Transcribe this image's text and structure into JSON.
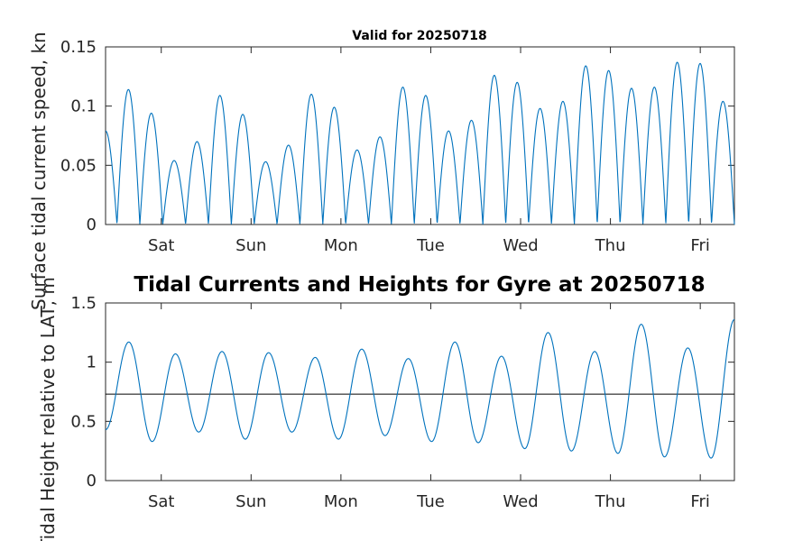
{
  "chart_data": [
    {
      "type": "line",
      "title": "Valid for 20250718",
      "xlabel": "",
      "ylabel": "Surface tidal current speed, kn",
      "x_tick_labels": [
        "Sat",
        "Sun",
        "Mon",
        "Tue",
        "Wed",
        "Thu",
        "Fri"
      ],
      "xlim_days": [
        0,
        7
      ],
      "ylim": [
        0,
        0.15
      ],
      "y_ticks": [
        "0",
        "0.05",
        "0.1",
        "0.15"
      ],
      "y_tick_values": [
        0,
        0.05,
        0.1,
        0.15
      ],
      "grid": false,
      "legend": "none",
      "color": "#0072BD",
      "peaks": [
        0.079,
        0.114,
        0.094,
        0.054,
        0.07,
        0.109,
        0.093,
        0.053,
        0.067,
        0.11,
        0.099,
        0.063,
        0.074,
        0.116,
        0.109,
        0.079,
        0.088,
        0.126,
        0.12,
        0.098,
        0.104,
        0.134,
        0.13,
        0.115,
        0.116,
        0.137,
        0.136,
        0.104
      ]
    },
    {
      "type": "line",
      "title": "Tidal Currents and Heights for Gyre at 20250718",
      "xlabel": "",
      "ylabel": "Tidal Height relative to LAT, m",
      "x_tick_labels": [
        "Sat",
        "Sun",
        "Mon",
        "Tue",
        "Wed",
        "Thu",
        "Fri"
      ],
      "xlim_days": [
        0,
        7
      ],
      "ylim": [
        0,
        1.5
      ],
      "y_ticks": [
        "0",
        "0.5",
        "1",
        "1.5"
      ],
      "y_tick_values": [
        0,
        0.5,
        1,
        1.5
      ],
      "grid": false,
      "legend": "none",
      "color": "#0072BD",
      "reference_level": 0.73,
      "extrema": [
        0.43,
        1.17,
        0.33,
        1.07,
        0.41,
        1.09,
        0.35,
        1.08,
        0.41,
        1.04,
        0.35,
        1.11,
        0.38,
        1.03,
        0.33,
        1.17,
        0.32,
        1.05,
        0.27,
        1.25,
        0.25,
        1.09,
        0.23,
        1.32,
        0.2,
        1.12,
        0.19,
        1.36
      ]
    }
  ]
}
